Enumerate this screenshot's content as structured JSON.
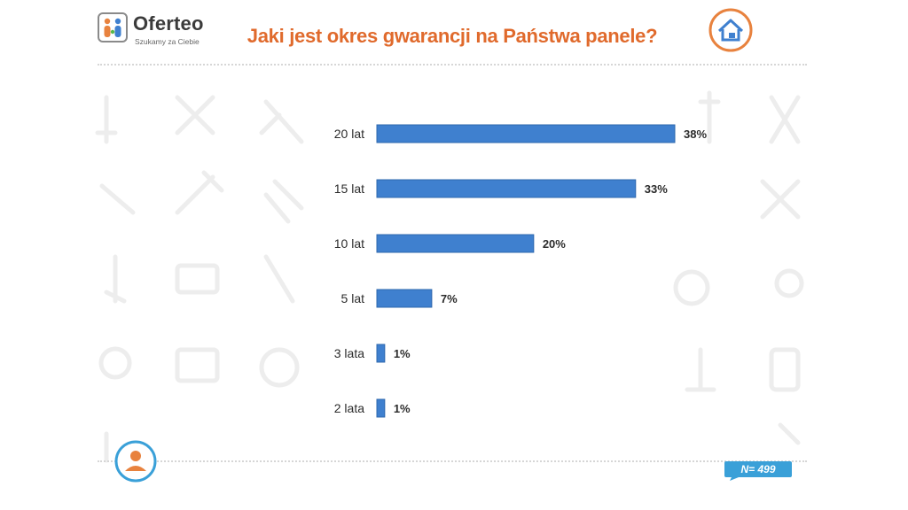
{
  "brand": {
    "name": "Oferteo",
    "tagline": "Szukamy za Ciebie"
  },
  "title": "Jaki jest okres gwarancji na Państwa panele?",
  "sample_size": "N= 499",
  "icons": {
    "logo": "oferteo-logo-icon",
    "home": "home-badge-icon",
    "user": "user-avatar-icon",
    "sample_badge": "speech-bubble-icon"
  },
  "colors": {
    "bar": "#3f80cf",
    "bar_edge": "#2d67ae",
    "title": "#e06a2c",
    "badge_ring": "#e8823e",
    "n_badge": "#3aa0d8"
  },
  "chart_data": {
    "type": "bar",
    "orientation": "horizontal",
    "title": "Jaki jest okres gwarancji na Państwa panele?",
    "categories": [
      "20 lat",
      "15 lat",
      "10 lat",
      "5 lat",
      "3 lata",
      "2 lata"
    ],
    "values": [
      38,
      33,
      20,
      7,
      1,
      1
    ],
    "value_labels": [
      "38%",
      "33%",
      "20%",
      "7%",
      "1%",
      "1%"
    ],
    "unit": "%",
    "xlim": [
      0,
      40
    ],
    "grid": false,
    "legend": "none"
  }
}
